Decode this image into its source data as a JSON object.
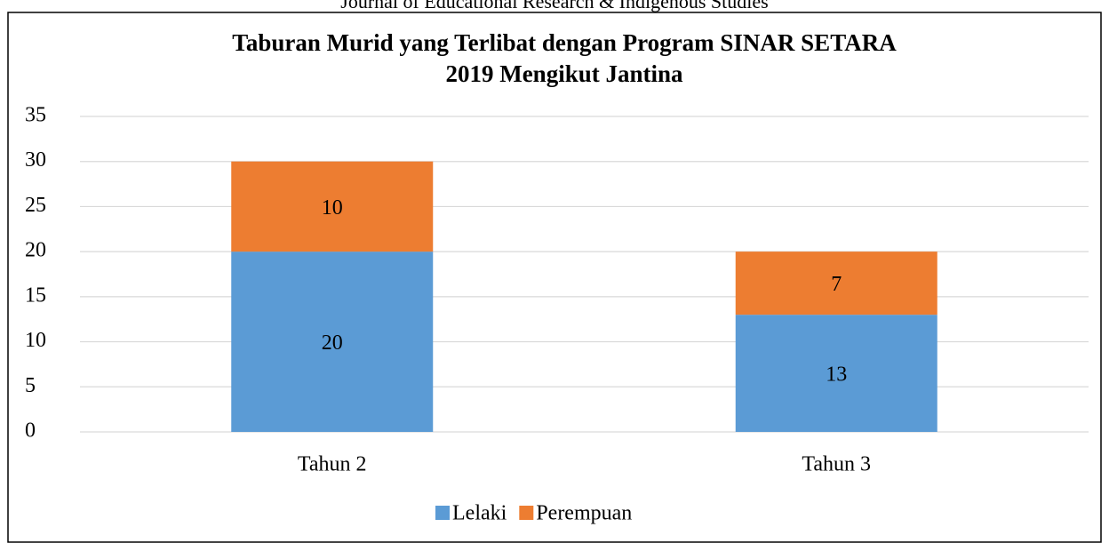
{
  "header": "Journal of Educational Research & Indigenous Studies",
  "chart_data": {
    "type": "stacked_bar",
    "title": [
      "Taburan Murid yang Terlibat dengan Program SINAR SETARA",
      "2019 Mengikut Jantina"
    ],
    "categories": [
      "Tahun 2",
      "Tahun 3"
    ],
    "series": [
      {
        "name": "Lelaki",
        "color": "#5b9bd5",
        "values": [
          20,
          13
        ]
      },
      {
        "name": "Perempuan",
        "color": "#ed7d31",
        "values": [
          10,
          7
        ]
      }
    ],
    "ylim": [
      0,
      35
    ],
    "yticks": [
      0,
      5,
      10,
      15,
      20,
      25,
      30,
      35
    ],
    "grid": true,
    "legend": "bottom"
  }
}
